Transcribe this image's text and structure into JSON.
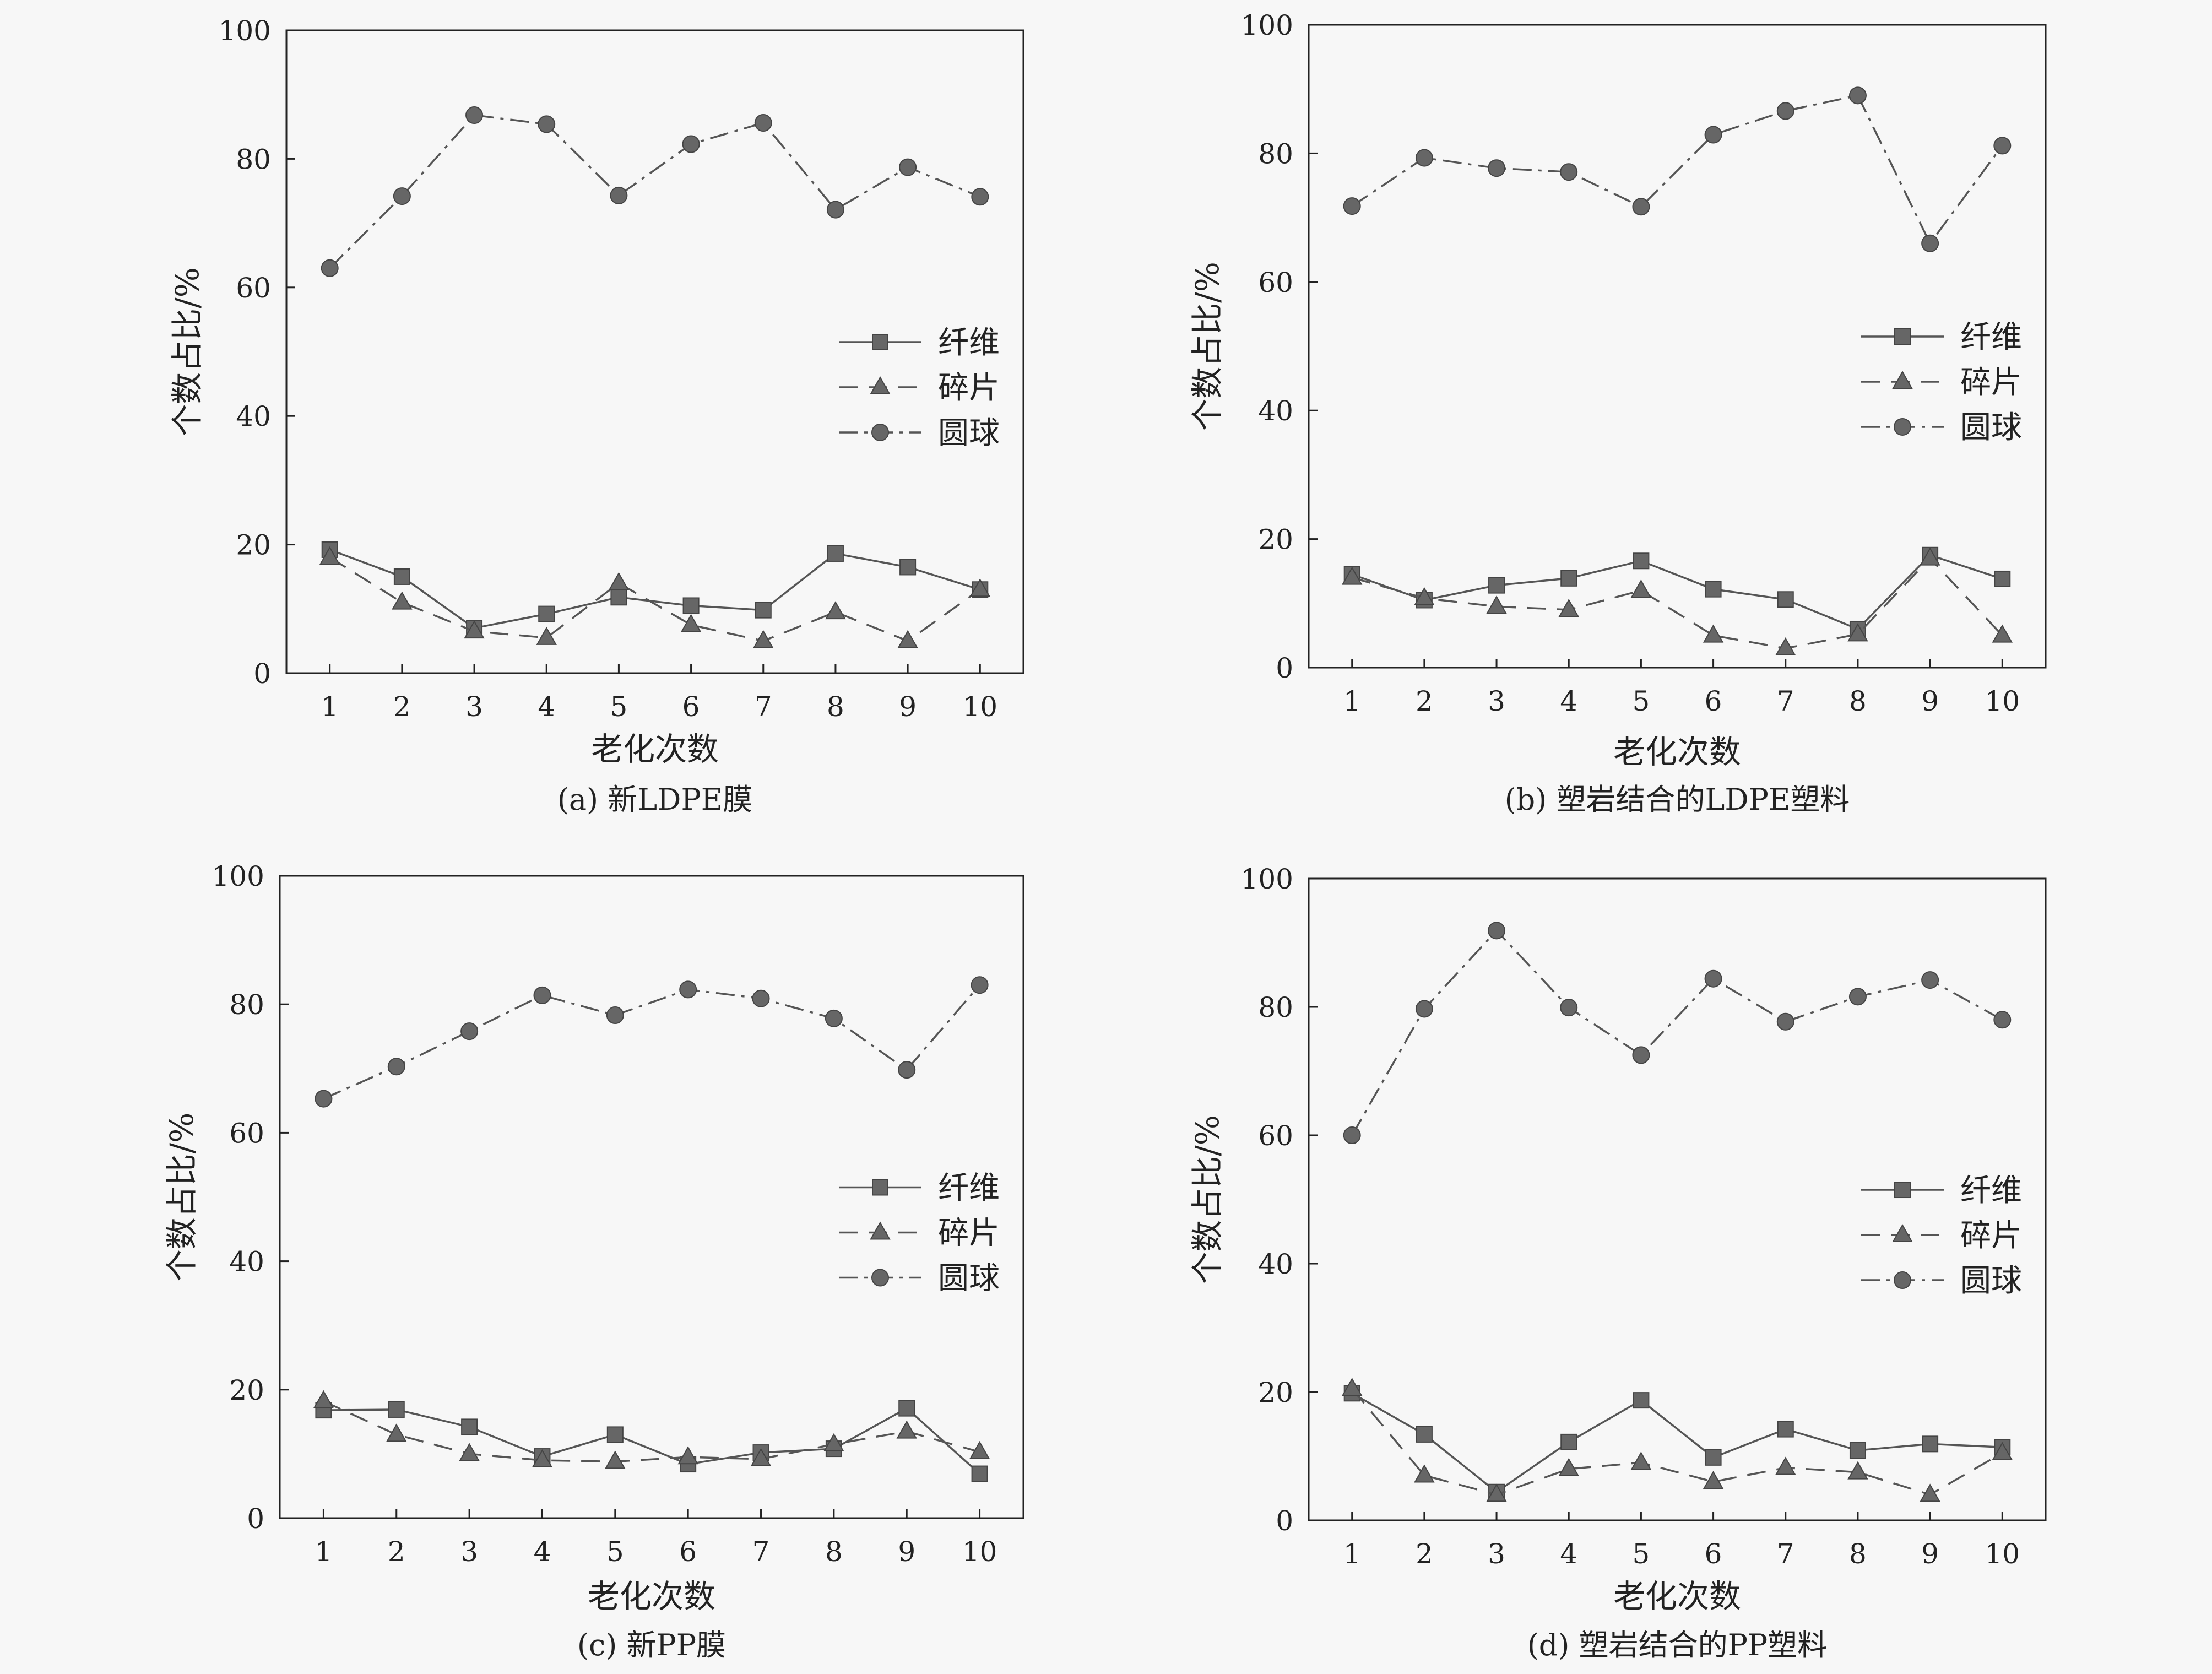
{
  "chart_data": [
    {
      "type": "line",
      "caption": "(a) 新LDPE膜",
      "xlabel": "老化次数",
      "ylabel": "个数占比/%",
      "x": [
        1,
        2,
        3,
        4,
        5,
        6,
        7,
        8,
        9,
        10
      ],
      "ylim": [
        0,
        100
      ],
      "yticks": [
        0,
        20,
        40,
        60,
        80,
        100
      ],
      "grid": false,
      "legend_position": "right",
      "series": [
        {
          "name": "纤维",
          "marker": "square",
          "dash": "solid",
          "values": [
            19.2,
            15.0,
            7.0,
            9.2,
            11.8,
            10.5,
            9.8,
            18.6,
            16.5,
            13.0
          ]
        },
        {
          "name": "碎片",
          "marker": "triangle",
          "dash": "dashed",
          "values": [
            18.0,
            11.0,
            6.5,
            5.5,
            14.0,
            7.5,
            5.0,
            9.5,
            5.0,
            13.0
          ]
        },
        {
          "name": "圆球",
          "marker": "circle",
          "dash": "dashdot",
          "values": [
            63.0,
            74.2,
            86.8,
            85.4,
            74.3,
            82.3,
            85.6,
            72.1,
            78.7,
            74.1
          ]
        }
      ]
    },
    {
      "type": "line",
      "caption": "(b) 塑岩结合的LDPE塑料",
      "xlabel": "老化次数",
      "ylabel": "个数占比/%",
      "x": [
        1,
        2,
        3,
        4,
        5,
        6,
        7,
        8,
        9,
        10
      ],
      "ylim": [
        0,
        100
      ],
      "yticks": [
        0,
        20,
        40,
        60,
        80,
        100
      ],
      "grid": false,
      "legend_position": "right",
      "series": [
        {
          "name": "纤维",
          "marker": "square",
          "dash": "solid",
          "values": [
            14.5,
            10.5,
            12.8,
            13.9,
            16.6,
            12.2,
            10.6,
            6.0,
            17.5,
            13.8
          ]
        },
        {
          "name": "碎片",
          "marker": "triangle",
          "dash": "dashed",
          "values": [
            14.0,
            10.8,
            9.5,
            9.0,
            12.0,
            5.0,
            3.0,
            5.2,
            17.0,
            5.0
          ]
        },
        {
          "name": "圆球",
          "marker": "circle",
          "dash": "dashdot",
          "values": [
            71.8,
            79.3,
            77.7,
            77.1,
            71.7,
            82.9,
            86.6,
            89.0,
            66.0,
            81.2
          ]
        }
      ]
    },
    {
      "type": "line",
      "caption": "(c) 新PP膜",
      "xlabel": "老化次数",
      "ylabel": "个数占比/%",
      "x": [
        1,
        2,
        3,
        4,
        5,
        6,
        7,
        8,
        9,
        10
      ],
      "ylim": [
        0,
        100
      ],
      "yticks": [
        0,
        20,
        40,
        60,
        80,
        100
      ],
      "grid": false,
      "legend_position": "right",
      "series": [
        {
          "name": "纤维",
          "marker": "square",
          "dash": "solid",
          "values": [
            16.8,
            16.9,
            14.2,
            9.6,
            13.0,
            8.4,
            10.2,
            10.8,
            17.1,
            6.9
          ]
        },
        {
          "name": "碎片",
          "marker": "triangle",
          "dash": "dashed",
          "values": [
            18.2,
            13.0,
            10.0,
            9.0,
            8.8,
            9.5,
            9.2,
            11.5,
            13.5,
            10.3
          ]
        },
        {
          "name": "圆球",
          "marker": "circle",
          "dash": "dashdot",
          "values": [
            65.3,
            70.3,
            75.8,
            81.4,
            78.3,
            82.3,
            80.9,
            77.8,
            69.8,
            83.0
          ]
        }
      ]
    },
    {
      "type": "line",
      "caption": "(d) 塑岩结合的PP塑料",
      "xlabel": "老化次数",
      "ylabel": "个数占比/%",
      "x": [
        1,
        2,
        3,
        4,
        5,
        6,
        7,
        8,
        9,
        10
      ],
      "ylim": [
        0,
        100
      ],
      "yticks": [
        0,
        20,
        40,
        60,
        80,
        100
      ],
      "grid": false,
      "legend_position": "right",
      "series": [
        {
          "name": "纤维",
          "marker": "square",
          "dash": "solid",
          "values": [
            19.8,
            13.4,
            4.4,
            12.2,
            18.7,
            9.8,
            14.2,
            10.9,
            11.9,
            11.4
          ]
        },
        {
          "name": "碎片",
          "marker": "triangle",
          "dash": "dashed",
          "values": [
            20.5,
            7.0,
            4.0,
            8.0,
            9.0,
            6.0,
            8.2,
            7.5,
            4.0,
            10.5
          ]
        },
        {
          "name": "圆球",
          "marker": "circle",
          "dash": "dashdot",
          "values": [
            60.0,
            79.7,
            91.9,
            79.9,
            72.5,
            84.4,
            77.7,
            81.6,
            84.2,
            78.0
          ]
        }
      ]
    }
  ],
  "colors": {
    "line": "#555555",
    "marker": "#666666",
    "axis": "#222222",
    "background": "#f7f7f7"
  }
}
